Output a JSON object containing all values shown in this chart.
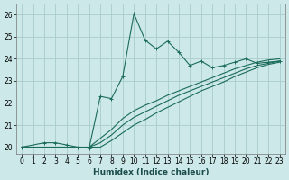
{
  "xlabel": "Humidex (Indice chaleur)",
  "bg_color": "#cce8e8",
  "grid_color": "#aacccc",
  "line_color": "#1a6b5a",
  "xlim": [
    -0.5,
    23.5
  ],
  "ylim": [
    19.7,
    26.5
  ],
  "yticks": [
    20,
    21,
    22,
    23,
    24,
    25,
    26
  ],
  "xticks": [
    0,
    1,
    2,
    3,
    4,
    5,
    6,
    7,
    8,
    9,
    10,
    11,
    12,
    13,
    14,
    15,
    16,
    17,
    18,
    19,
    20,
    21,
    22,
    23
  ],
  "main_x": [
    0,
    2,
    3,
    4,
    5,
    6,
    7,
    8,
    9,
    10,
    11,
    12,
    13,
    14,
    15,
    16,
    17,
    18,
    19,
    20,
    21,
    22,
    23
  ],
  "main_y": [
    20.0,
    20.2,
    20.2,
    20.1,
    20.0,
    19.95,
    22.3,
    22.2,
    23.2,
    26.05,
    24.85,
    24.45,
    24.8,
    24.3,
    23.7,
    23.9,
    23.6,
    23.7,
    23.85,
    24.0,
    23.8,
    23.85,
    23.9
  ],
  "l2_x": [
    0,
    6,
    7,
    8,
    9,
    10,
    11,
    12,
    13,
    14,
    15,
    16,
    17,
    18,
    19,
    20,
    21,
    22,
    23
  ],
  "l2_y": [
    20.0,
    20.0,
    20.4,
    20.8,
    21.3,
    21.65,
    21.9,
    22.1,
    22.35,
    22.55,
    22.75,
    22.95,
    23.15,
    23.35,
    23.55,
    23.7,
    23.85,
    23.95,
    24.0
  ],
  "l3_x": [
    0,
    6,
    7,
    8,
    9,
    10,
    11,
    12,
    13,
    14,
    15,
    16,
    17,
    18,
    19,
    20,
    21,
    22,
    23
  ],
  "l3_y": [
    20.0,
    20.0,
    20.2,
    20.55,
    21.0,
    21.35,
    21.6,
    21.85,
    22.1,
    22.35,
    22.55,
    22.75,
    22.95,
    23.15,
    23.35,
    23.55,
    23.7,
    23.8,
    23.9
  ],
  "l4_x": [
    0,
    6,
    7,
    8,
    9,
    10,
    11,
    12,
    13,
    14,
    15,
    16,
    17,
    18,
    19,
    20,
    21,
    22,
    23
  ],
  "l4_y": [
    20.0,
    20.0,
    20.0,
    20.3,
    20.65,
    21.0,
    21.25,
    21.55,
    21.8,
    22.05,
    22.3,
    22.55,
    22.75,
    22.95,
    23.2,
    23.4,
    23.6,
    23.75,
    23.85
  ]
}
